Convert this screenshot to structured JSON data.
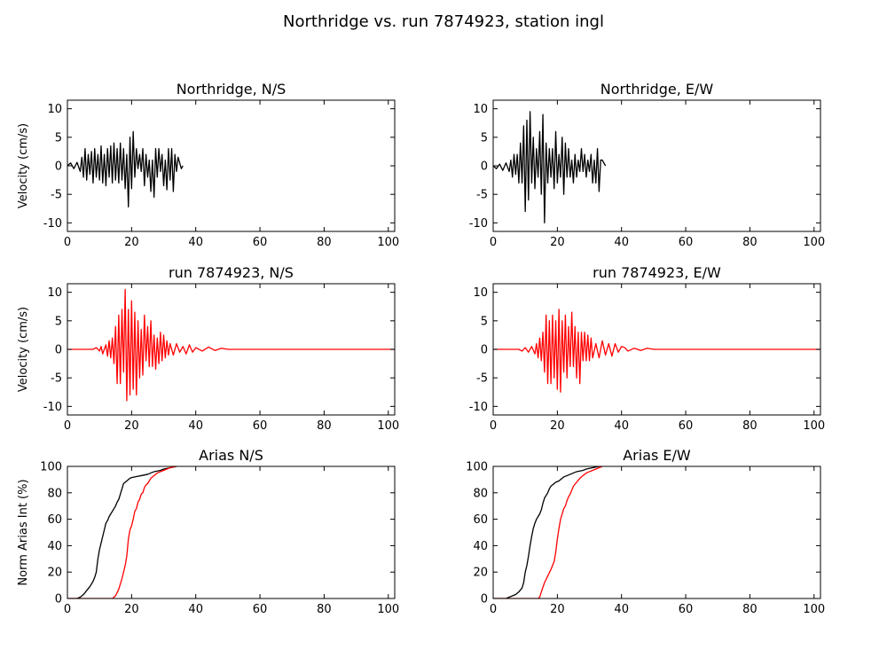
{
  "figure": {
    "title": "Northridge vs. run 7874923, station ingl"
  },
  "colors": {
    "observed": "#000000",
    "simulated": "#ff0000"
  },
  "chart_data": [
    {
      "type": "line",
      "title": "Northridge, N/S",
      "ylabel": "Velocity (cm/s)",
      "xlim": [
        0,
        102
      ],
      "ylim": [
        -11.5,
        11.5
      ],
      "xticks": [
        0,
        20,
        40,
        60,
        80,
        100
      ],
      "yticks": [
        -10,
        -5,
        0,
        5,
        10
      ],
      "series": [
        {
          "color": "#000000",
          "x": [
            0,
            1,
            2,
            3,
            4,
            4.5,
            5,
            5.5,
            6,
            6.5,
            7,
            7.5,
            8,
            8.5,
            9,
            9.5,
            10,
            10.5,
            11,
            11.5,
            12,
            12.5,
            13,
            13.5,
            14,
            14.5,
            15,
            15.5,
            16,
            16.5,
            17,
            17.5,
            18,
            18.5,
            19,
            19.5,
            20,
            20.5,
            21,
            21.5,
            22,
            22.5,
            23,
            23.5,
            24,
            24.5,
            25,
            25.5,
            26,
            26.5,
            27,
            27.5,
            28,
            28.5,
            29,
            29.5,
            30,
            30.5,
            31,
            31.5,
            32,
            32.5,
            33,
            33.5,
            34,
            34.5,
            35,
            35.5,
            36
          ],
          "y": [
            0,
            0.5,
            -0.5,
            0.6,
            -1,
            1.5,
            -2,
            3,
            -2.5,
            2,
            -1.5,
            2.5,
            -3,
            3,
            -2,
            2,
            -2.5,
            3.5,
            -3,
            2,
            -3.5,
            3,
            -2,
            3.5,
            -3,
            4,
            -2.5,
            3,
            -3,
            4,
            -2.5,
            3,
            -4,
            2,
            -7.2,
            5,
            -4,
            6,
            -2,
            3,
            -0.5,
            2,
            -1,
            3,
            -3.5,
            2,
            -2,
            1,
            -4.5,
            1,
            -5.5,
            3,
            -2,
            3,
            -1,
            2,
            -3.5,
            1,
            -4.2,
            3,
            -2.5,
            3,
            -4.5,
            2,
            -1,
            1.5,
            0.5,
            -0.5,
            0
          ]
        }
      ]
    },
    {
      "type": "line",
      "title": "Northridge, E/W",
      "ylabel": "",
      "xlim": [
        0,
        102
      ],
      "ylim": [
        -11.5,
        11.5
      ],
      "xticks": [
        0,
        20,
        40,
        60,
        80,
        100
      ],
      "yticks": [
        -10,
        -5,
        0,
        5,
        10
      ],
      "series": [
        {
          "color": "#000000",
          "x": [
            0,
            1,
            2,
            3,
            4,
            5,
            5.5,
            6,
            6.5,
            7,
            7.5,
            8,
            8.5,
            9,
            9.5,
            10,
            10.5,
            11,
            11.5,
            12,
            12.5,
            13,
            13.5,
            14,
            14.5,
            15,
            15.5,
            16,
            16.5,
            17,
            17.5,
            18,
            18.5,
            19,
            19.5,
            20,
            20.5,
            21,
            21.5,
            22,
            22.5,
            23,
            23.5,
            24,
            24.5,
            25,
            25.5,
            26,
            26.5,
            27,
            27.5,
            28,
            28.5,
            29,
            29.5,
            30,
            30.5,
            31,
            31.5,
            32,
            32.5,
            33,
            33.5,
            34,
            35
          ],
          "y": [
            0,
            -0.5,
            0.3,
            -0.8,
            0.5,
            -1,
            1,
            -2,
            2,
            -1.5,
            2,
            -3,
            4,
            -3,
            7,
            -8,
            8,
            -6,
            9.5,
            -3,
            5,
            -4,
            3,
            -2,
            6,
            -5,
            9,
            -10,
            4,
            -3,
            3,
            -2,
            3,
            -4,
            6,
            -3,
            2,
            -2,
            5,
            -5,
            4,
            -2,
            3,
            -2,
            1,
            -3,
            2,
            -2,
            1,
            -1,
            3,
            -1,
            2,
            -2,
            1,
            -1,
            2,
            -3,
            1,
            -3,
            3,
            -4.5,
            1,
            1,
            0
          ]
        }
      ]
    },
    {
      "type": "line",
      "title": "run 7874923, N/S",
      "ylabel": "Velocity (cm/s)",
      "xlim": [
        0,
        102
      ],
      "ylim": [
        -11.5,
        11.5
      ],
      "xticks": [
        0,
        20,
        40,
        60,
        80,
        100
      ],
      "yticks": [
        -10,
        -5,
        0,
        5,
        10
      ],
      "series": [
        {
          "color": "#ff0000",
          "x": [
            0,
            5,
            8,
            9,
            10,
            10.5,
            11,
            12,
            12.5,
            13,
            13.5,
            14,
            14.5,
            15,
            15.5,
            16,
            16.5,
            17,
            17.5,
            18,
            18.5,
            19,
            19.5,
            20,
            20.5,
            21,
            21.5,
            22,
            22.5,
            23,
            23.5,
            24,
            24.5,
            25,
            25.5,
            26,
            26.5,
            27,
            27.5,
            28,
            28.5,
            29,
            29.5,
            30,
            30.5,
            31,
            31.5,
            32,
            33,
            34,
            35,
            36,
            37,
            38,
            39,
            40,
            42,
            44,
            46,
            48,
            50,
            55,
            60,
            70,
            80,
            90,
            102
          ],
          "y": [
            0,
            0,
            0,
            0.3,
            -0.3,
            0.5,
            -0.8,
            0.8,
            -1.2,
            1.5,
            -1.5,
            2,
            -2.5,
            4,
            -6,
            6,
            -6,
            7,
            -4,
            10.5,
            -9,
            7,
            -8,
            8.5,
            -7,
            6.5,
            -8,
            5,
            -5,
            3.5,
            -4.5,
            6,
            -2,
            4,
            -3,
            5,
            -3,
            2.5,
            -3.5,
            2,
            -2.5,
            3,
            -2,
            2.5,
            -1.5,
            1.5,
            -1,
            1,
            -1,
            1,
            -0.5,
            0.5,
            -0.8,
            0.8,
            -0.5,
            0.3,
            -0.3,
            0.4,
            -0.2,
            0.2,
            0,
            0,
            0,
            0,
            0,
            0,
            0
          ]
        }
      ]
    },
    {
      "type": "line",
      "title": "run 7874923, E/W",
      "ylabel": "",
      "xlim": [
        0,
        102
      ],
      "ylim": [
        -11.5,
        11.5
      ],
      "xticks": [
        0,
        20,
        40,
        60,
        80,
        100
      ],
      "yticks": [
        -10,
        -5,
        0,
        5,
        10
      ],
      "series": [
        {
          "color": "#ff0000",
          "x": [
            0,
            5,
            8,
            9,
            10,
            11,
            12,
            13,
            13.5,
            14,
            14.5,
            15,
            15.5,
            16,
            16.5,
            17,
            17.5,
            18,
            18.5,
            19,
            19.5,
            20,
            20.5,
            21,
            21.5,
            22,
            22.5,
            23,
            23.5,
            24,
            24.5,
            25,
            25.5,
            26,
            26.5,
            27,
            27.5,
            28,
            28.5,
            29,
            29.5,
            30,
            30.5,
            31,
            32,
            33,
            34,
            35,
            36,
            37,
            38,
            39,
            40,
            41,
            42,
            44,
            46,
            48,
            50,
            55,
            60,
            70,
            80,
            90,
            102
          ],
          "y": [
            0,
            0,
            0,
            -0.3,
            0.3,
            -0.5,
            0.5,
            -0.8,
            1,
            -1.5,
            2,
            -2,
            3,
            -4,
            6,
            -6,
            5,
            -6,
            6,
            -5,
            5,
            -7,
            7,
            -7.5,
            5,
            -4,
            6,
            -5,
            4,
            -3,
            6.5,
            -3,
            4,
            -5,
            3,
            -6,
            3,
            -2,
            3,
            -2,
            2.5,
            -2,
            2,
            -1.5,
            1,
            -1.5,
            1.5,
            -1,
            1,
            -1.2,
            1,
            -0.5,
            0.5,
            0.3,
            -0.3,
            0.2,
            -0.2,
            0.2,
            0,
            0,
            0,
            0,
            0,
            0,
            0
          ]
        }
      ]
    },
    {
      "type": "line",
      "title": "Arias N/S",
      "ylabel": "Norm Arias Int (%)",
      "xlim": [
        0,
        102
      ],
      "ylim": [
        0,
        100
      ],
      "xticks": [
        0,
        20,
        40,
        60,
        80,
        100
      ],
      "yticks": [
        0,
        20,
        40,
        60,
        80,
        100
      ],
      "series": [
        {
          "color": "#000000",
          "x": [
            0,
            3,
            4,
            5,
            6,
            7,
            8,
            8.5,
            9,
            9.5,
            10,
            10.5,
            11,
            11.5,
            12,
            12.5,
            13,
            13.5,
            14,
            14.5,
            15,
            15.5,
            16,
            16.5,
            17,
            17.5,
            18,
            18.5,
            19,
            19.5,
            20,
            21,
            22,
            23,
            24,
            25,
            26,
            27,
            28,
            29,
            30,
            31,
            32,
            33,
            34
          ],
          "y": [
            0,
            0,
            1,
            3,
            6,
            9,
            13,
            16,
            20,
            30,
            37,
            42,
            47,
            52,
            57,
            59,
            62,
            64,
            66,
            68,
            70,
            73,
            75,
            79,
            83,
            87,
            88,
            89,
            90,
            91,
            91.5,
            92,
            92.5,
            93,
            93.5,
            94,
            95,
            96,
            96.5,
            97,
            98,
            98.5,
            99,
            99.5,
            100
          ]
        },
        {
          "color": "#ff0000",
          "x": [
            0,
            14,
            15,
            16,
            17,
            18,
            18.5,
            19,
            19.5,
            20,
            20.5,
            21,
            21.5,
            22,
            22.5,
            23,
            23.5,
            24,
            24.5,
            25,
            25.5,
            26,
            26.5,
            27,
            27.5,
            28,
            29,
            30,
            31,
            32,
            33,
            34
          ],
          "y": [
            0,
            0,
            2,
            7,
            15,
            25,
            32,
            45,
            52,
            55,
            60,
            66,
            68,
            73,
            75,
            79,
            80,
            84,
            86,
            87,
            89,
            91,
            92,
            93,
            94,
            95,
            96,
            97,
            98,
            99,
            99.5,
            100
          ]
        }
      ]
    },
    {
      "type": "line",
      "title": "Arias E/W",
      "ylabel": "",
      "xlim": [
        0,
        102
      ],
      "ylim": [
        0,
        100
      ],
      "xticks": [
        0,
        20,
        40,
        60,
        80,
        100
      ],
      "yticks": [
        0,
        20,
        40,
        60,
        80,
        100
      ],
      "series": [
        {
          "color": "#000000",
          "x": [
            0,
            4,
            5,
            6,
            7,
            8,
            9,
            9.5,
            10,
            10.5,
            11,
            11.5,
            12,
            12.5,
            13,
            13.5,
            14,
            14.5,
            15,
            15.5,
            16,
            16.5,
            17,
            17.5,
            18,
            18.5,
            19,
            19.5,
            20,
            20.5,
            21,
            22,
            23,
            24,
            25,
            26,
            27,
            28,
            29,
            30,
            31,
            32,
            33,
            34
          ],
          "y": [
            0,
            0,
            1,
            2,
            3,
            5,
            8,
            12,
            20,
            25,
            32,
            40,
            47,
            53,
            57,
            60,
            62,
            64,
            67,
            72,
            76,
            78,
            80,
            83,
            85,
            86,
            87,
            88,
            88.5,
            89,
            90,
            92,
            93,
            94,
            95,
            96,
            96.5,
            97,
            98,
            98.5,
            99,
            99.5,
            100,
            100
          ]
        },
        {
          "color": "#ff0000",
          "x": [
            0,
            14,
            14.5,
            15,
            16,
            17,
            18,
            19,
            19.5,
            20,
            20.5,
            21,
            21.5,
            22,
            22.5,
            23,
            23.5,
            24,
            24.5,
            25,
            26,
            27,
            28,
            29,
            30,
            31,
            32,
            33,
            34
          ],
          "y": [
            0,
            0,
            1,
            5,
            12,
            17,
            22,
            28,
            35,
            45,
            53,
            60,
            64,
            68,
            70,
            74,
            77,
            79,
            82,
            85,
            88,
            91,
            93,
            95,
            96,
            97,
            98,
            99,
            100
          ]
        }
      ]
    }
  ]
}
